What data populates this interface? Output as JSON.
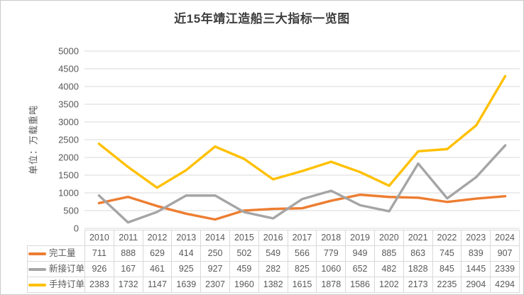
{
  "title": "近15年靖江造船三大指标一览图",
  "y_axis": {
    "title": "单位：万载重吨",
    "tick_labels": [
      "5000",
      "4500",
      "4000",
      "3500",
      "3000",
      "2500",
      "2000",
      "1500",
      "1000",
      "500",
      "0"
    ]
  },
  "colors": {
    "title_text": "#3f3f3f",
    "axis_text": "#595959",
    "gridline": "#d9d9d9",
    "table_border": "#d9d9d9",
    "series_completed": "#ED7D31",
    "series_new_orders": "#A5A5A5",
    "series_backlog": "#FFC000"
  },
  "chart_data": {
    "type": "line",
    "title": "近15年靖江造船三大指标一览图",
    "xlabel": "",
    "ylabel": "单位：万载重吨",
    "ylim": [
      0,
      5000
    ],
    "y_step": 500,
    "y_ticks": [
      5000,
      4500,
      4000,
      3500,
      3000,
      2500,
      2000,
      1500,
      1000,
      500,
      0
    ],
    "grid": true,
    "legend_position": "data-table-left",
    "categories": [
      "2010",
      "2011",
      "2012",
      "2013",
      "2014",
      "2015",
      "2016",
      "2017",
      "2018",
      "2019",
      "2020",
      "2021",
      "2022",
      "2023",
      "2024"
    ],
    "series": [
      {
        "name": "完工量",
        "id": "completed-volume",
        "color": "#ED7D31",
        "values": [
          711,
          888,
          629,
          414,
          250,
          502,
          549,
          566,
          779,
          949,
          885,
          863,
          745,
          839,
          907
        ]
      },
      {
        "name": "新接订单",
        "id": "new-orders",
        "color": "#A5A5A5",
        "values": [
          926,
          167,
          461,
          925,
          927,
          459,
          282,
          825,
          1060,
          652,
          482,
          1828,
          845,
          1445,
          2339
        ]
      },
      {
        "name": "手持订单",
        "id": "orders-on-hand",
        "color": "#FFC000",
        "values": [
          2383,
          1732,
          1147,
          1639,
          2307,
          1960,
          1382,
          1615,
          1878,
          1586,
          1202,
          2173,
          2235,
          2904,
          4294
        ]
      }
    ]
  }
}
